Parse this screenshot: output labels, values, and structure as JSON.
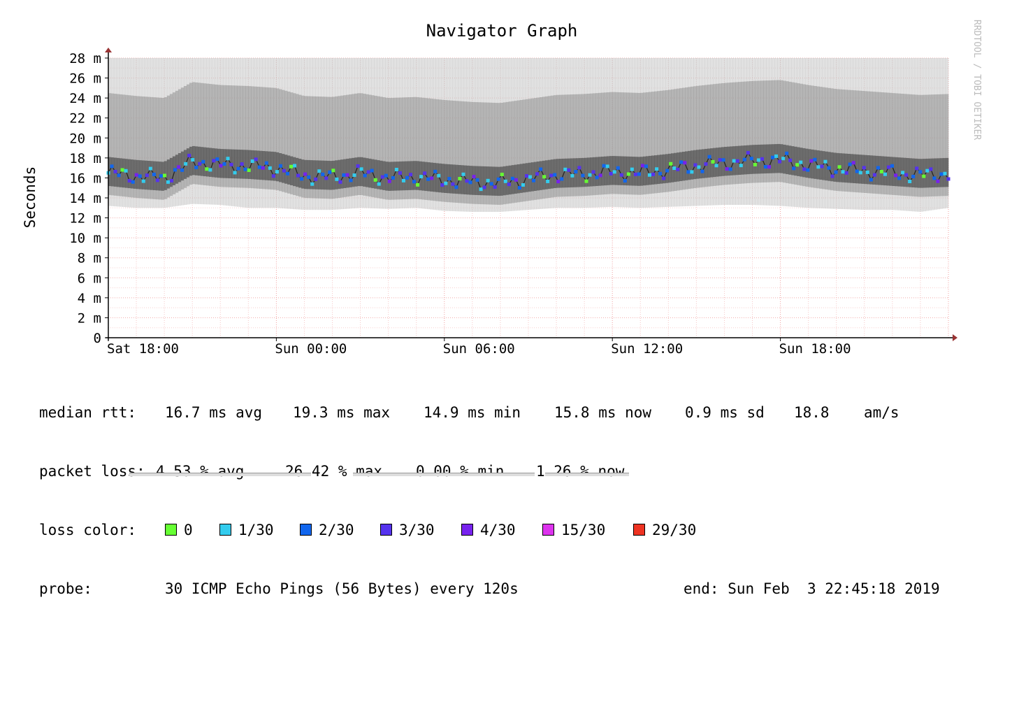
{
  "chart_data": {
    "type": "line",
    "title": "Navigator Graph",
    "ylabel": "Seconds",
    "xlabel": "",
    "watermark": "RRDTOOL / TOBI OETIKER",
    "ylim": [
      0,
      28
    ],
    "y_ticks": [
      "0",
      "2 m",
      "4 m",
      "6 m",
      "8 m",
      "10 m",
      "12 m",
      "14 m",
      "16 m",
      "18 m",
      "20 m",
      "22 m",
      "24 m",
      "26 m",
      "28 m"
    ],
    "x_ticks": [
      "Sat 18:00",
      "Sun 00:00",
      "Sun 06:00",
      "Sun 12:00",
      "Sun 18:00"
    ],
    "x_tick_hours": [
      0,
      6,
      12,
      18,
      24
    ],
    "x_range_hours": [
      0,
      30
    ],
    "grid": true,
    "series": [
      {
        "name": "median rtt",
        "units": "ms",
        "x_hours": [
          0,
          1,
          2,
          3,
          4,
          5,
          6,
          7,
          8,
          9,
          10,
          11,
          12,
          13,
          14,
          15,
          16,
          17,
          18,
          19,
          20,
          21,
          22,
          23,
          24,
          25,
          26,
          27,
          28,
          29,
          30
        ],
        "values": [
          16.5,
          16.2,
          16.0,
          17.6,
          17.3,
          17.2,
          17.0,
          16.2,
          16.1,
          16.5,
          16.0,
          16.1,
          15.8,
          15.6,
          15.5,
          15.9,
          16.3,
          16.4,
          16.6,
          16.5,
          16.8,
          17.2,
          17.5,
          17.7,
          17.8,
          17.3,
          16.9,
          16.7,
          16.5,
          16.3,
          16.4
        ],
        "spread_min": [
          13.2,
          13.0,
          13.0,
          13.4,
          13.3,
          13.0,
          13.0,
          12.8,
          12.8,
          13.0,
          12.9,
          13.0,
          12.7,
          12.6,
          12.6,
          12.8,
          13.0,
          13.0,
          13.1,
          13.0,
          13.1,
          13.2,
          13.3,
          13.3,
          13.2,
          13.0,
          12.9,
          12.8,
          12.8,
          12.6,
          13.0
        ],
        "spread_max": [
          28,
          28,
          28,
          28,
          28,
          28,
          28,
          28,
          28,
          28,
          28,
          28,
          28,
          28,
          28,
          28,
          28,
          28,
          28,
          28,
          28,
          28,
          28,
          28,
          28,
          28,
          28,
          28,
          28,
          28,
          28
        ]
      }
    ],
    "loss_colors": [
      "#66ff33",
      "#33ccee",
      "#1166ee",
      "#5533ee",
      "#7722ee",
      "#dd33ee",
      "#ee3322"
    ]
  },
  "legend": {
    "rtt": {
      "label": "median rtt:",
      "avg": "16.7 ms avg",
      "max": "19.3 ms max",
      "min": "14.9 ms min",
      "now": "15.8 ms now",
      "sd": "0.9 ms sd",
      "am": "18.8",
      "am_unit": "am/s"
    },
    "loss": {
      "label": "packet loss:",
      "avg": "4.53 % avg",
      "max": "26.42 % max",
      "min": "0.00 % min",
      "now": "1.26 % now"
    },
    "loss_color": {
      "label": "loss color:",
      "items": [
        {
          "label": "0",
          "color": "#66ff33"
        },
        {
          "label": "1/30",
          "color": "#33ccee"
        },
        {
          "label": "2/30",
          "color": "#1166ee"
        },
        {
          "label": "3/30",
          "color": "#5533ee"
        },
        {
          "label": "4/30",
          "color": "#7722ee"
        },
        {
          "label": "15/30",
          "color": "#dd33ee"
        },
        {
          "label": "29/30",
          "color": "#ee3322"
        }
      ]
    },
    "probe": {
      "label": "probe:",
      "value": "30 ICMP Echo Pings (56 Bytes) every 120s",
      "end": "end: Sun Feb  3 22:45:18 2019"
    }
  }
}
